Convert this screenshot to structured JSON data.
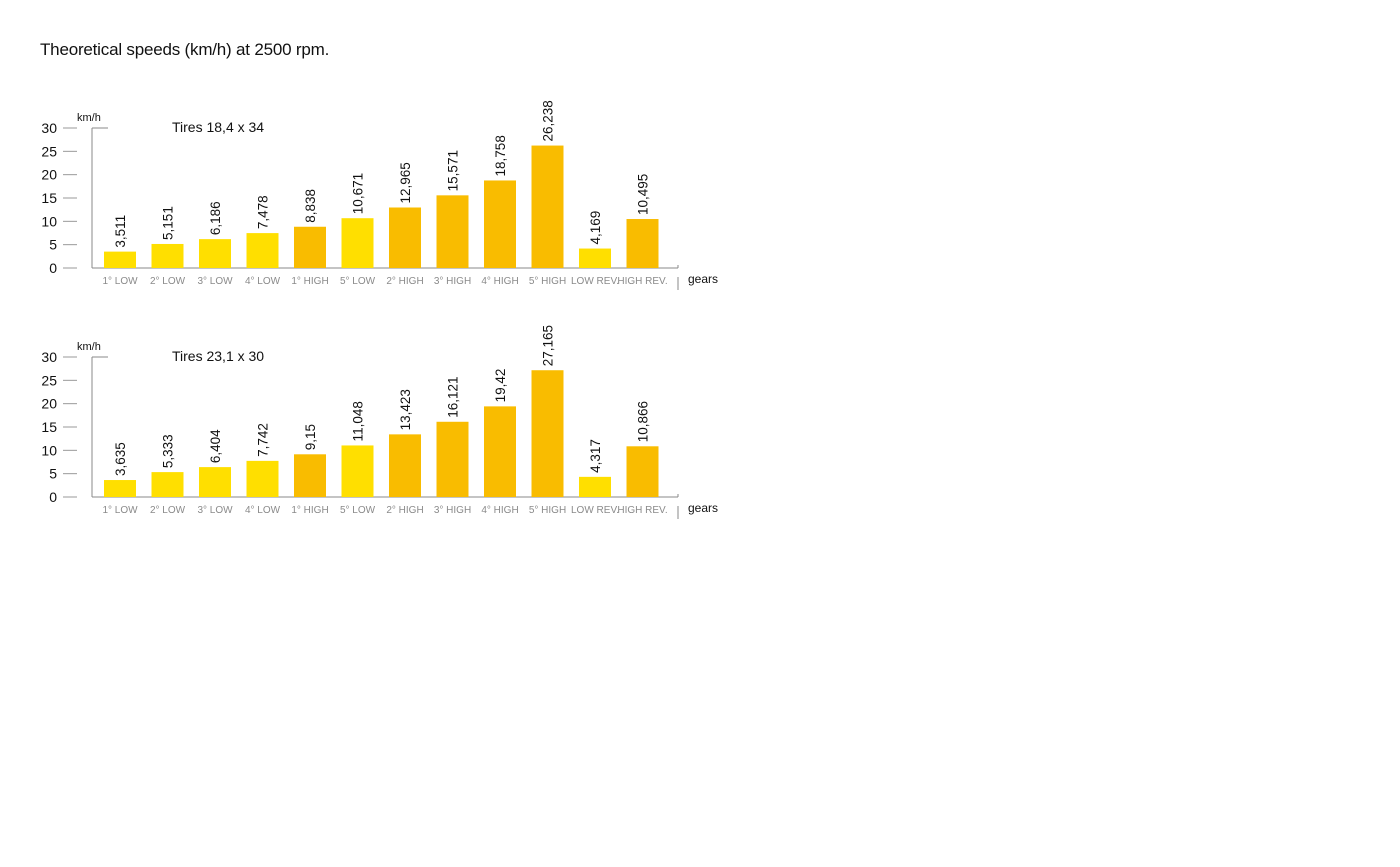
{
  "page": {
    "title": "Theoretical speeds (km/h) at 2500 rpm."
  },
  "colors": {
    "light": "#FFDF00",
    "dark": "#F9BC00",
    "axis": "#888888",
    "tick": "#999999"
  },
  "chart_data": [
    {
      "type": "bar",
      "title": "Tires 18,4 x 34",
      "ylabel": "km/h",
      "xlabel": "gears",
      "ylim": [
        0,
        30
      ],
      "yticks": [
        0,
        5,
        10,
        15,
        20,
        25,
        30
      ],
      "grid": false,
      "categories": [
        "1° LOW",
        "2° LOW",
        "3° LOW",
        "4° LOW",
        "1° HIGH",
        "5° LOW",
        "2° HIGH",
        "3° HIGH",
        "4° HIGH",
        "5° HIGH",
        "LOW REV.",
        "HIGH REV."
      ],
      "values": [
        3.511,
        5.151,
        6.186,
        7.478,
        8.838,
        10.671,
        12.965,
        15.571,
        18.758,
        26.238,
        4.169,
        10.495
      ],
      "value_labels": [
        "3,511",
        "5,151",
        "6,186",
        "7,478",
        "8,838",
        "10,671",
        "12,965",
        "15,571",
        "18,758",
        "26,238",
        "4,169",
        "10,495"
      ],
      "bar_colors": [
        "#FFDF00",
        "#FFDF00",
        "#FFDF00",
        "#FFDF00",
        "#F9BC00",
        "#FFDF00",
        "#F9BC00",
        "#F9BC00",
        "#F9BC00",
        "#F9BC00",
        "#FFDF00",
        "#F9BC00"
      ]
    },
    {
      "type": "bar",
      "title": "Tires 23,1 x 30",
      "ylabel": "km/h",
      "xlabel": "gears",
      "ylim": [
        0,
        30
      ],
      "yticks": [
        0,
        5,
        10,
        15,
        20,
        25,
        30
      ],
      "grid": false,
      "categories": [
        "1° LOW",
        "2° LOW",
        "3° LOW",
        "4° LOW",
        "1° HIGH",
        "5° LOW",
        "2° HIGH",
        "3° HIGH",
        "4° HIGH",
        "5° HIGH",
        "LOW REV.",
        "HIGH REV."
      ],
      "values": [
        3.635,
        5.333,
        6.404,
        7.742,
        9.15,
        11.048,
        13.423,
        16.121,
        19.42,
        27.165,
        4.317,
        10.866
      ],
      "value_labels": [
        "3,635",
        "5,333",
        "6,404",
        "7,742",
        "9,15",
        "11,048",
        "13,423",
        "16,121",
        "19,42",
        "27,165",
        "4,317",
        "10,866"
      ],
      "bar_colors": [
        "#FFDF00",
        "#FFDF00",
        "#FFDF00",
        "#FFDF00",
        "#F9BC00",
        "#FFDF00",
        "#F9BC00",
        "#F9BC00",
        "#F9BC00",
        "#F9BC00",
        "#FFDF00",
        "#F9BC00"
      ]
    }
  ]
}
